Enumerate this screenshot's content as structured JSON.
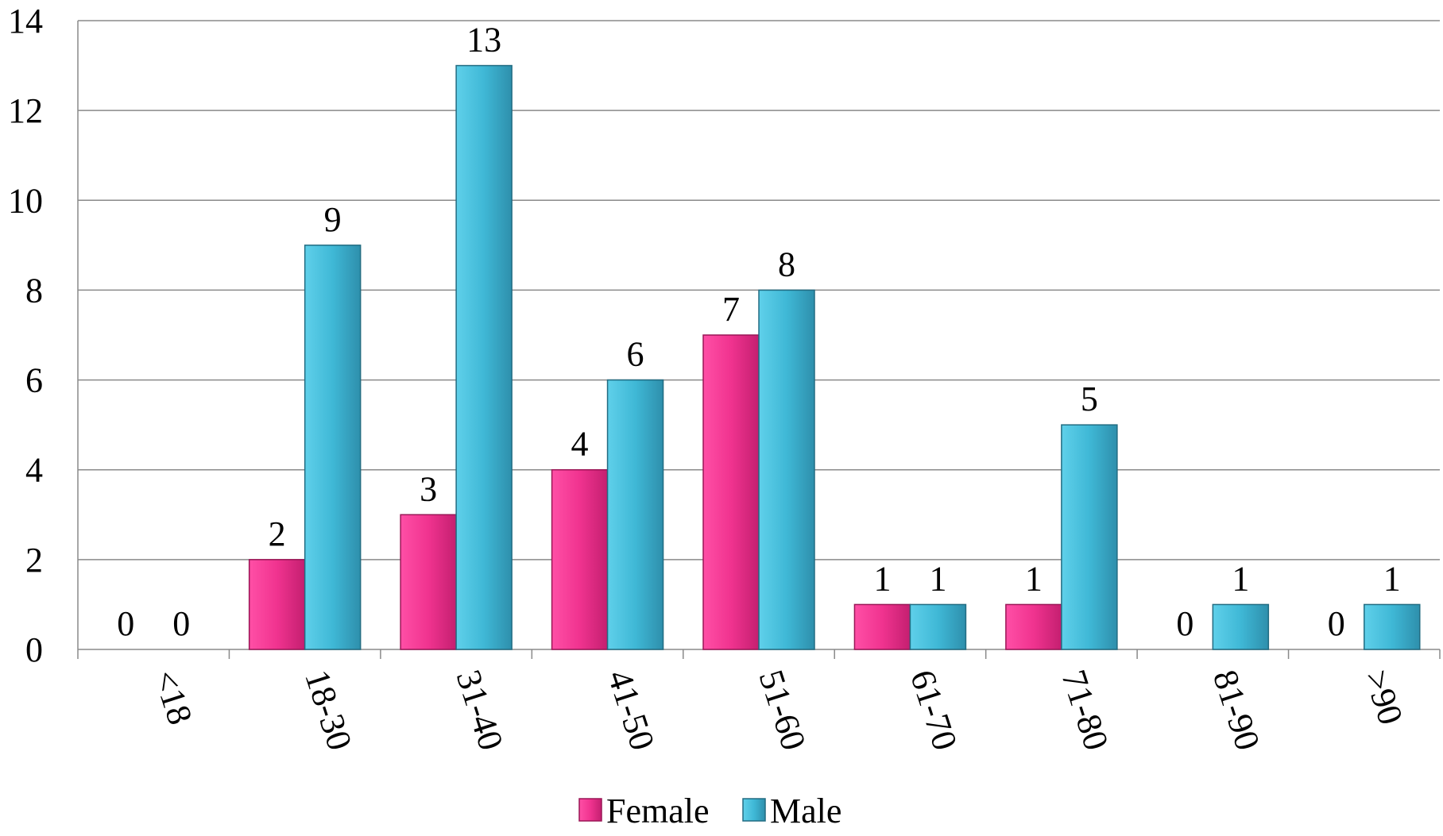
{
  "chart_data": {
    "type": "bar",
    "categories": [
      "<18",
      "18-30",
      "31-40",
      "41-50",
      "51-60",
      "61-70",
      "71-80",
      "81-90",
      ">90"
    ],
    "series": [
      {
        "name": "Female",
        "values": [
          0,
          2,
          3,
          4,
          7,
          1,
          1,
          0,
          0
        ],
        "color": "#f0338f"
      },
      {
        "name": "Male",
        "values": [
          0,
          9,
          13,
          6,
          8,
          1,
          5,
          1,
          1
        ],
        "color": "#3fb8d6"
      }
    ],
    "ylim": [
      0,
      14
    ],
    "yticks": [
      0,
      2,
      4,
      6,
      8,
      10,
      12,
      14
    ],
    "grid": true,
    "legend_position": "bottom",
    "title": "",
    "xlabel": "",
    "ylabel": ""
  }
}
